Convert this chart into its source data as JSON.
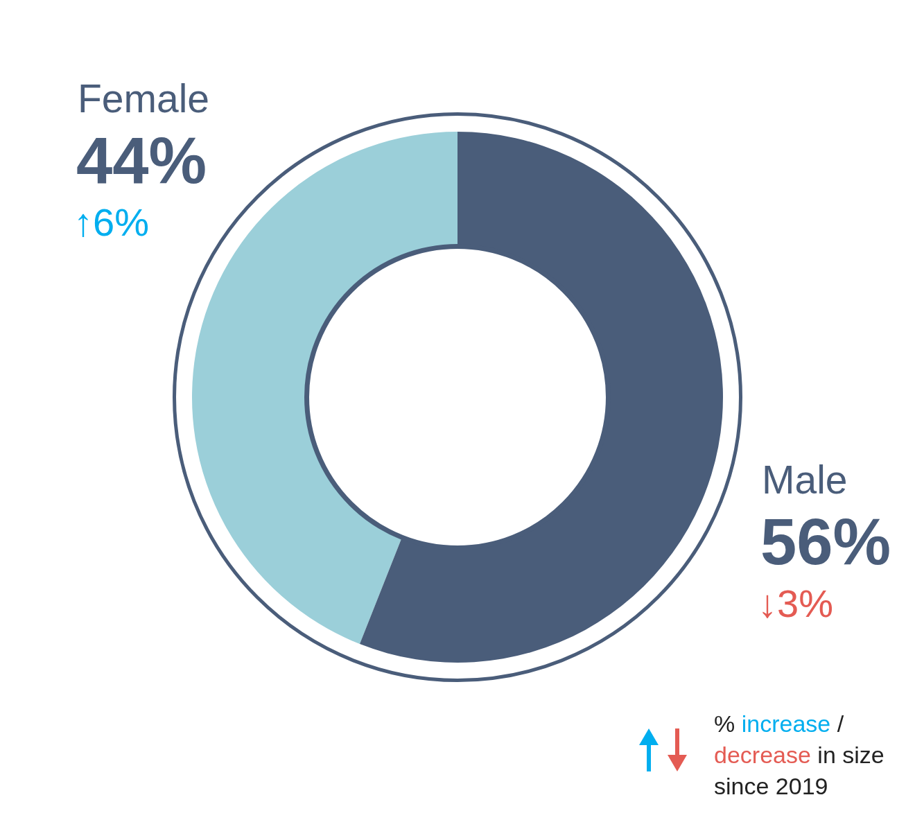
{
  "chart_data": {
    "type": "donut",
    "categories": [
      "Female",
      "Male"
    ],
    "values": [
      44,
      56
    ],
    "colors": [
      "#9bcfd9",
      "#4a5d7a"
    ],
    "value_labels": [
      "44%",
      "56%"
    ],
    "annotations": [
      "↑6%",
      "↓3%",
      "%",
      "increase",
      "/",
      "decrease",
      "in size",
      "since 2019"
    ]
  }
}
